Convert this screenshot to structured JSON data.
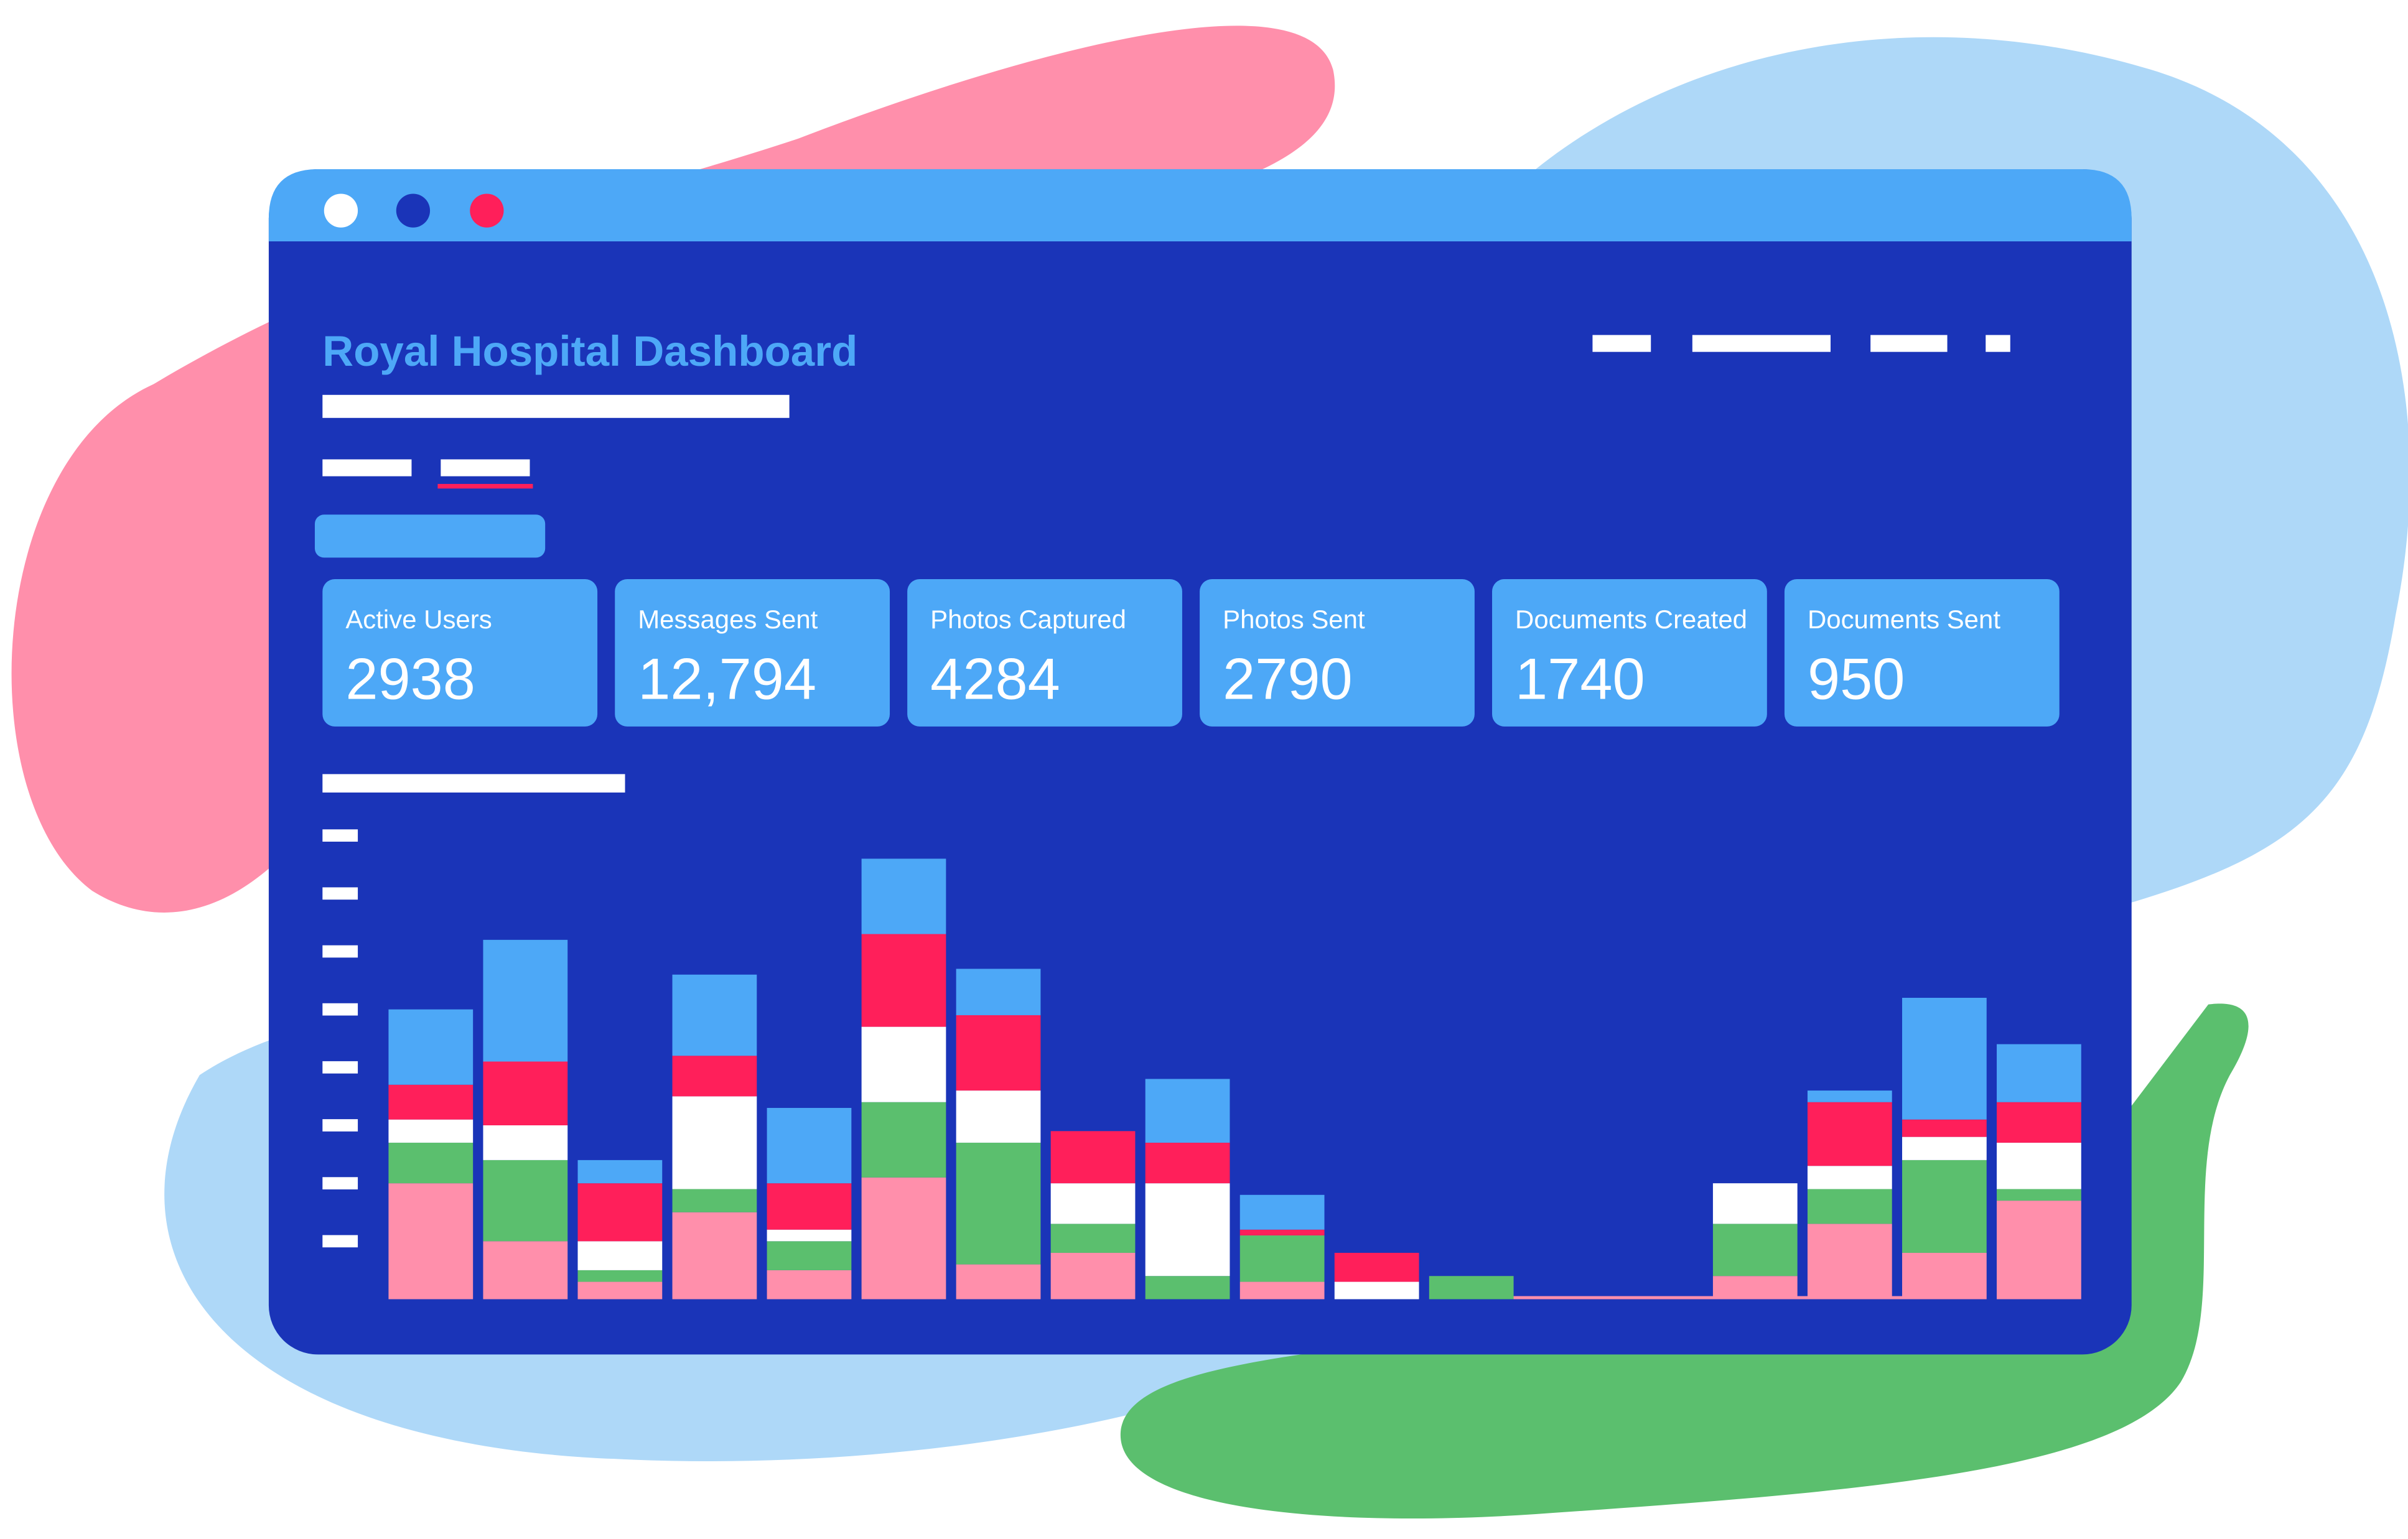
{
  "header": {
    "title": "Royal Hospital Dashboard"
  },
  "cards": [
    {
      "label": "Active Users",
      "value": "2938"
    },
    {
      "label": "Messages Sent",
      "value": "12,794"
    },
    {
      "label": "Photos Captured",
      "value": "4284"
    },
    {
      "label": "Photos Sent",
      "value": "2790"
    },
    {
      "label": "Documents Created",
      "value": "1740"
    },
    {
      "label": "Documents Sent",
      "value": "950"
    }
  ],
  "chart_data": {
    "type": "stacked_bar",
    "categories": [
      null,
      null,
      null,
      null,
      null,
      null,
      null,
      null,
      null,
      null,
      null,
      null,
      null,
      null,
      null,
      null,
      null,
      null
    ],
    "series": [
      {
        "color": "#ff8fab",
        "values": [
          2.0,
          1.0,
          0.3,
          1.5,
          0.5,
          2.1,
          0.6,
          0.8,
          0,
          0.3,
          0,
          0,
          0,
          0,
          0.4,
          1.3,
          0.8,
          1.7
        ]
      },
      {
        "color": "#5bbf6e",
        "values": [
          0.7,
          1.4,
          0.2,
          0.4,
          0.5,
          1.3,
          2.1,
          0.5,
          0.4,
          0.8,
          0,
          0.4,
          0,
          0,
          0.9,
          0.6,
          1.6,
          0.2
        ]
      },
      {
        "color": "#ffffff",
        "values": [
          0.4,
          0.6,
          0.5,
          1.6,
          0.2,
          1.3,
          0.9,
          0.7,
          1.6,
          0,
          0.3,
          0,
          0,
          0,
          0.7,
          0.4,
          0.4,
          0.8
        ]
      },
      {
        "color": "#ff1f5a",
        "values": [
          0.6,
          1.1,
          1.0,
          0.7,
          0.8,
          1.6,
          1.3,
          0.9,
          0.7,
          0.1,
          0.5,
          0,
          0,
          0,
          0,
          1.1,
          0.3,
          0.7
        ]
      },
      {
        "color": "#4da8f7",
        "values": [
          1.3,
          2.1,
          0.4,
          1.4,
          1.3,
          1.3,
          0.8,
          0,
          1.1,
          0.6,
          0,
          0,
          0,
          0,
          0,
          0.2,
          2.1,
          1.0
        ]
      }
    ],
    "ylim": [
      0,
      8
    ],
    "yticks": [
      1,
      2,
      3,
      4,
      5,
      6,
      7,
      8
    ]
  }
}
